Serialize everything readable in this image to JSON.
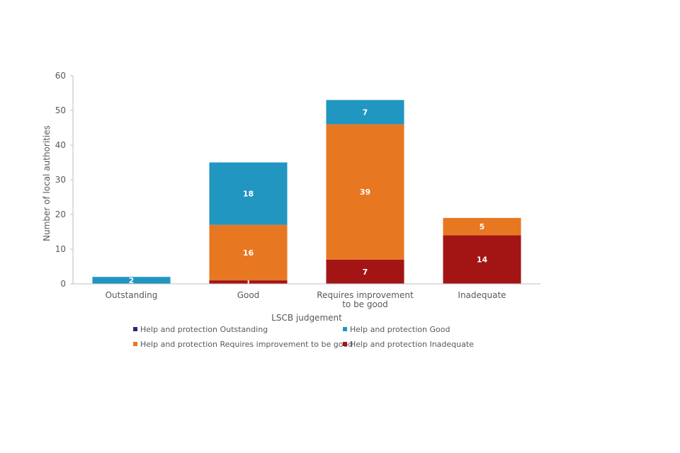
{
  "chart_data": {
    "type": "bar",
    "stacked": true,
    "categories": [
      [
        "Outstanding"
      ],
      [
        "Good"
      ],
      [
        "Requires improvement",
        "to be good"
      ],
      [
        "Inadequate"
      ]
    ],
    "series": [
      {
        "name": "Help and protection Outstanding",
        "color": "#2a2a6e",
        "values": [
          0,
          0,
          0,
          0
        ]
      },
      {
        "name": "Help and protection Inadequate",
        "color": "#a31515",
        "values": [
          0,
          1,
          7,
          14
        ]
      },
      {
        "name": "Help and protection Requires improvement to be good",
        "color": "#e87722",
        "values": [
          0,
          16,
          39,
          5
        ]
      },
      {
        "name": "Help and protection Good",
        "color": "#2196c0",
        "values": [
          2,
          18,
          7,
          0
        ]
      }
    ],
    "legend_order": [
      0,
      3,
      2,
      1
    ],
    "xlabel": "LSCB judgement",
    "ylabel": "Number of local authorities",
    "ylim": [
      0,
      60
    ],
    "yticks": [
      0,
      10,
      20,
      30,
      40,
      50,
      60
    ],
    "grid": false,
    "legend_position": "bottom"
  }
}
